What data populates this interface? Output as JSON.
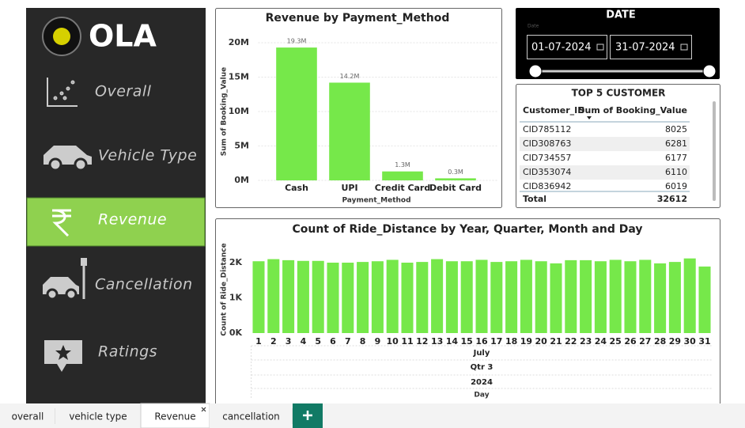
{
  "sidebar": {
    "logo": "OLA",
    "nav": [
      "Overall",
      "Vehicle Type",
      "Revenue",
      "Cancellation",
      "Ratings"
    ],
    "active_nav": "Revenue"
  },
  "chart_data": [
    {
      "type": "bar",
      "title": "Revenue by Payment_Method",
      "xlabel": "Payment_Method",
      "ylabel": "Sum of Booking_Value",
      "categories": [
        "Cash",
        "UPI",
        "Credit Card",
        "Debit Card"
      ],
      "values": [
        19300000,
        14200000,
        1300000,
        300000
      ],
      "value_labels": [
        "19.3M",
        "14.2M",
        "1.3M",
        "0.3M"
      ],
      "color": "#76e84a",
      "ylim": [
        0,
        20000000
      ],
      "yticks": [
        {
          "value": 0,
          "label": "0M"
        },
        {
          "value": 5000000,
          "label": "5M"
        },
        {
          "value": 10000000,
          "label": "10M"
        },
        {
          "value": 15000000,
          "label": "15M"
        },
        {
          "value": 20000000,
          "label": "20M"
        }
      ],
      "grid": true
    },
    {
      "type": "bar",
      "title": "Count of Ride_Distance by Year, Quarter, Month and Day",
      "ylabel": "Count of Ride_Distance",
      "categories": [
        "1",
        "2",
        "3",
        "4",
        "5",
        "6",
        "7",
        "8",
        "9",
        "10",
        "11",
        "12",
        "13",
        "14",
        "15",
        "16",
        "17",
        "18",
        "19",
        "20",
        "21",
        "22",
        "23",
        "24",
        "25",
        "26",
        "27",
        "28",
        "29",
        "30",
        "31"
      ],
      "values": [
        2040,
        2100,
        2070,
        2050,
        2050,
        2000,
        2000,
        2020,
        2040,
        2080,
        2000,
        2020,
        2100,
        2040,
        2040,
        2080,
        2020,
        2040,
        2080,
        2040,
        1980,
        2070,
        2070,
        2040,
        2080,
        2040,
        2080,
        1980,
        2020,
        2120,
        1890
      ],
      "x_levels": [
        "July",
        "Qtr 3",
        "2024"
      ],
      "xlabel": "Day",
      "color": "#76e84a",
      "ylim": [
        0,
        2200
      ],
      "yticks": [
        {
          "value": 0,
          "label": "0K"
        },
        {
          "value": 1000,
          "label": "1K"
        },
        {
          "value": 2000,
          "label": "2K"
        }
      ],
      "grid": false
    }
  ],
  "date_filter": {
    "title": "DATE",
    "label": "Date",
    "start": "01-07-2024",
    "end": "31-07-2024"
  },
  "table": {
    "title": "TOP 5 CUSTOMER",
    "columns": [
      "Customer_ID",
      "Sum of Booking_Value"
    ],
    "rows": [
      [
        "CID785112",
        8025
      ],
      [
        "CID308763",
        6281
      ],
      [
        "CID734557",
        6177
      ],
      [
        "CID353074",
        6110
      ],
      [
        "CID836942",
        6019
      ]
    ],
    "total_label": "Total",
    "total": 32612
  },
  "tabs": [
    "overall",
    "vehicle type",
    "Revenue",
    "cancellation"
  ],
  "active_tab": "Revenue"
}
